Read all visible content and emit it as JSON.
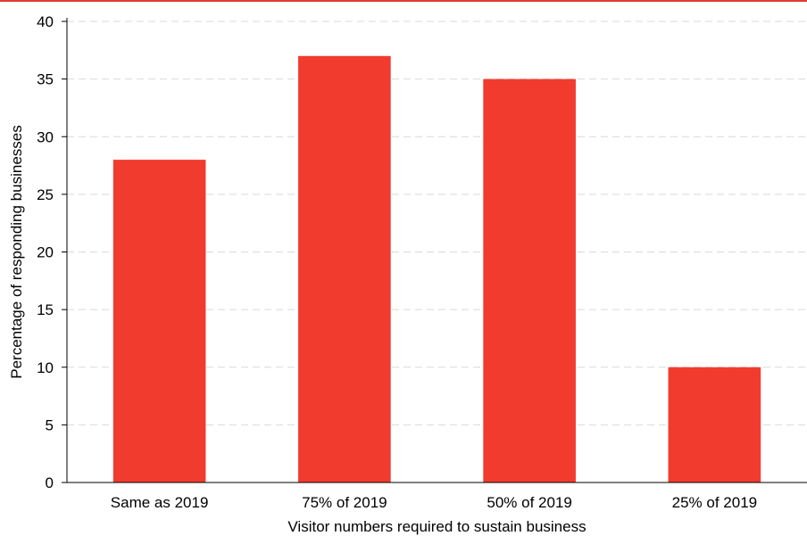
{
  "chart_data": {
    "type": "bar",
    "categories": [
      "Same as 2019",
      "75% of 2019",
      "50% of 2019",
      "25% of 2019"
    ],
    "values": [
      28,
      37,
      35,
      10
    ],
    "title": "",
    "xlabel": "Visitor numbers required to sustain business",
    "ylabel": "Percentage of responding businesses",
    "ylim": [
      0,
      40
    ],
    "yticks": [
      "0",
      "5",
      "10",
      "15",
      "20",
      "25",
      "30",
      "35",
      "40"
    ],
    "grid": true,
    "legend": "none",
    "bar_color": "#f03b2e",
    "grid_color": "#d9d9d9"
  }
}
